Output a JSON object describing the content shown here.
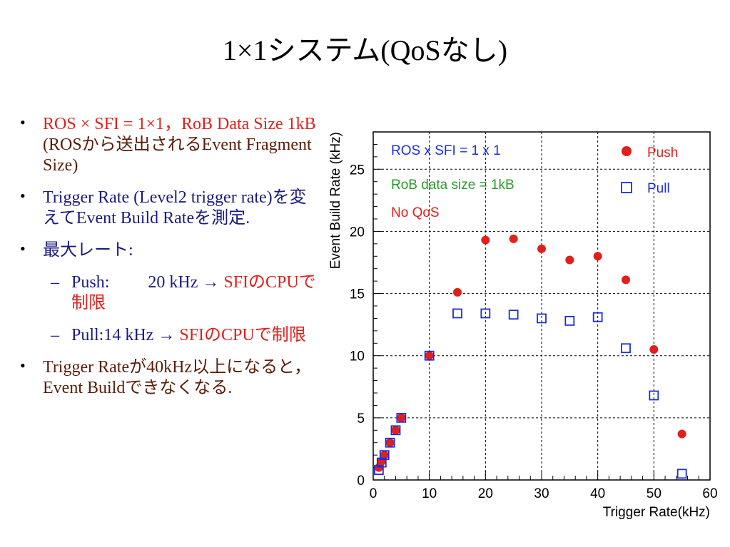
{
  "slide": {
    "title": "1×1システム(QoSなし)",
    "bullets": [
      {
        "runs": [
          {
            "text": "ROS × SFI = 1×1，RoB Data Size 1kB",
            "color": "red"
          },
          {
            "text": " (ROSから送出されるEvent Fragment Size)",
            "color": "brown"
          }
        ]
      },
      {
        "runs": [
          {
            "text": "Trigger Rate (Level2 trigger rate)を変えてEvent Build Rateを測定.",
            "color": "navy"
          }
        ]
      },
      {
        "runs": [
          {
            "text": "最大レート:",
            "color": "navy"
          }
        ]
      },
      {
        "sub": true,
        "runs": [
          {
            "text": "Push:         20 kHz → ",
            "color": "navy"
          },
          {
            "text": "SFIのCPUで制限",
            "color": "red"
          }
        ]
      },
      {
        "sub": true,
        "runs": [
          {
            "text": "Pull:14 kHz → ",
            "color": "navy"
          },
          {
            "text": "SFIのCPUで制限",
            "color": "red"
          }
        ]
      },
      {
        "runs": [
          {
            "text": "Trigger Rateが40kHz以上になると，Event Buildできなくなる.",
            "color": "brown"
          }
        ]
      }
    ]
  },
  "colors": {
    "red": "#e0201c",
    "navy": "#1a1a80",
    "brown": "#5a1d0a",
    "blue": "#1c2ed8",
    "green": "#2a9a2a"
  },
  "chart_data": {
    "type": "scatter",
    "xlabel": "Trigger Rate(kHz)",
    "ylabel": "Event Build Rate (kHz)",
    "xlim": [
      0,
      60
    ],
    "ylim": [
      0,
      28
    ],
    "xticks": [
      0,
      10,
      20,
      30,
      40,
      50,
      60
    ],
    "yticks": [
      0,
      5,
      10,
      15,
      20,
      25
    ],
    "grid": true,
    "annotations": [
      {
        "text": "ROS x SFI = 1 x 1",
        "color": "blue"
      },
      {
        "text": "RoB data size = 1kB",
        "color": "green"
      },
      {
        "text": "No QoS",
        "color": "red"
      }
    ],
    "legend_position": "top-right",
    "series": [
      {
        "name": "Push",
        "marker": "filled-circle",
        "color": "red",
        "x": [
          1,
          1.5,
          2,
          3,
          4,
          5,
          10,
          15,
          20,
          25,
          30,
          35,
          40,
          45,
          50,
          55
        ],
        "y": [
          1.0,
          1.5,
          2.0,
          3.0,
          4.0,
          5.0,
          10.0,
          15.1,
          19.3,
          19.4,
          18.6,
          17.7,
          18.0,
          16.1,
          10.5,
          3.7
        ]
      },
      {
        "name": "Pull",
        "marker": "open-square",
        "color": "blue",
        "x": [
          1,
          1.5,
          2,
          3,
          4,
          5,
          10,
          15,
          20,
          25,
          30,
          35,
          40,
          45,
          50,
          55
        ],
        "y": [
          0.8,
          1.4,
          2.0,
          3.0,
          4.0,
          5.0,
          10.0,
          13.4,
          13.4,
          13.3,
          13.0,
          12.8,
          13.1,
          10.6,
          6.8,
          0.5
        ]
      }
    ]
  }
}
